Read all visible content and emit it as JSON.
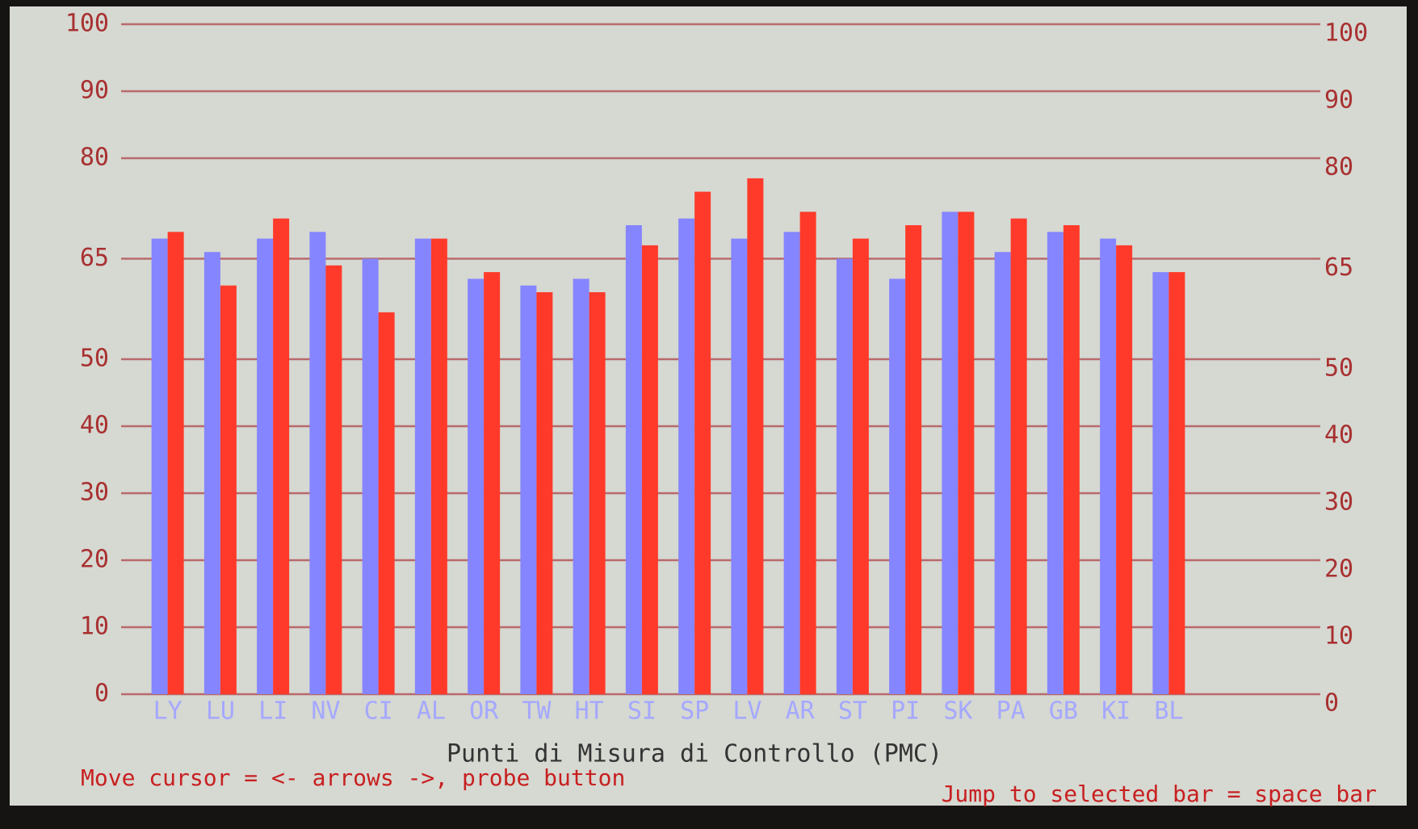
{
  "chart_data": {
    "type": "bar",
    "x_label": "Punti di Misura di Controllo (PMC)",
    "annotations": [
      "Move cursor = <- arrows ->, probe button",
      "Jump to selected bar = space bar"
    ],
    "categories": [
      "LY",
      "LU",
      "LI",
      "NV",
      "CI",
      "AL",
      "OR",
      "TW",
      "HT",
      "SI",
      "SP",
      "LV",
      "AR",
      "ST",
      "PI",
      "SK",
      "PA",
      "GB",
      "KI",
      "BL"
    ],
    "series": [
      {
        "color": "#8585ff",
        "values": [
          68,
          66,
          68,
          69,
          65,
          68,
          62,
          61,
          62,
          70,
          71,
          68,
          69,
          65,
          62,
          72,
          66,
          69,
          68,
          63
        ]
      },
      {
        "color": "#ff3a2a",
        "values": [
          69,
          61,
          71,
          64,
          57,
          68,
          63,
          60,
          60,
          67,
          75,
          77,
          72,
          68,
          70,
          72,
          71,
          70,
          67,
          63
        ]
      }
    ],
    "ylim": [
      0,
      100
    ],
    "yticks": [
      0,
      10,
      20,
      30,
      40,
      50,
      65,
      80,
      90,
      100
    ],
    "grid": true
  }
}
